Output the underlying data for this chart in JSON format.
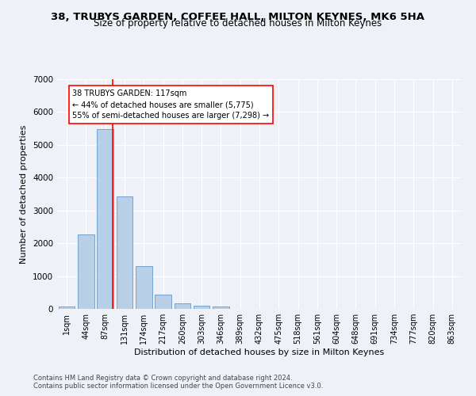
{
  "title_line1": "38, TRUBYS GARDEN, COFFEE HALL, MILTON KEYNES, MK6 5HA",
  "title_line2": "Size of property relative to detached houses in Milton Keynes",
  "xlabel": "Distribution of detached houses by size in Milton Keynes",
  "ylabel": "Number of detached properties",
  "footer_line1": "Contains HM Land Registry data © Crown copyright and database right 2024.",
  "footer_line2": "Contains public sector information licensed under the Open Government Licence v3.0.",
  "categories": [
    "1sqm",
    "44sqm",
    "87sqm",
    "131sqm",
    "174sqm",
    "217sqm",
    "260sqm",
    "303sqm",
    "346sqm",
    "389sqm",
    "432sqm",
    "475sqm",
    "518sqm",
    "561sqm",
    "604sqm",
    "648sqm",
    "691sqm",
    "734sqm",
    "777sqm",
    "820sqm",
    "863sqm"
  ],
  "values": [
    75,
    2270,
    5490,
    3430,
    1310,
    440,
    165,
    90,
    70,
    0,
    0,
    0,
    0,
    0,
    0,
    0,
    0,
    0,
    0,
    0,
    0
  ],
  "bar_color": "#b8cfe8",
  "bar_edge_color": "#6699cc",
  "vline_color": "red",
  "annotation_text": "38 TRUBYS GARDEN: 117sqm\n← 44% of detached houses are smaller (5,775)\n55% of semi-detached houses are larger (7,298) →",
  "annotation_box_color": "white",
  "annotation_box_edge_color": "red",
  "ylim": [
    0,
    7000
  ],
  "yticks": [
    0,
    1000,
    2000,
    3000,
    4000,
    5000,
    6000,
    7000
  ],
  "background_color": "#eef2f8",
  "grid_color": "white",
  "title_fontsize": 9.5,
  "subtitle_fontsize": 8.5,
  "axis_label_fontsize": 8,
  "tick_fontsize": 7,
  "footer_fontsize": 6
}
